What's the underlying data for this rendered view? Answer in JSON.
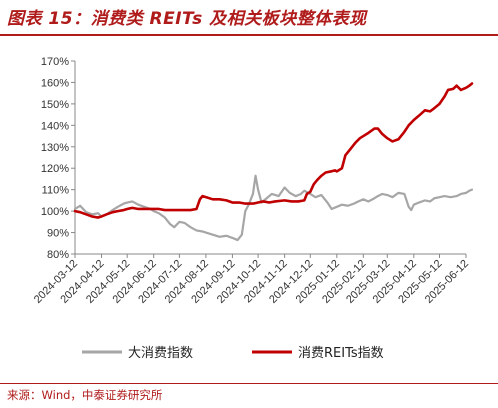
{
  "figure": {
    "title": "图表 15：消费类 REITs 及相关板块整体表现",
    "source": "来源：Wind，中泰证券研究所"
  },
  "colors": {
    "accent": "#b01b1b",
    "series_gray": "#a6a6a6",
    "series_red": "#c00000"
  },
  "chart_data": {
    "type": "line",
    "title": "",
    "xlabel": "",
    "ylabel": "",
    "ylim": [
      80,
      170
    ],
    "ytick_values": [
      80,
      90,
      100,
      110,
      120,
      130,
      140,
      150,
      160,
      170
    ],
    "ytick_labels": [
      "80%",
      "90%",
      "100%",
      "110%",
      "120%",
      "130%",
      "140%",
      "150%",
      "160%",
      "170%"
    ],
    "x_range": [
      "2024-03-12",
      "2025-06-12"
    ],
    "xtick_labels": [
      "2024-03-12",
      "2024-04-12",
      "2024-05-12",
      "2024-06-12",
      "2024-07-12",
      "2024-08-12",
      "2024-09-12",
      "2024-10-12",
      "2024-11-12",
      "2024-12-12",
      "2025-01-12",
      "2025-02-12",
      "2025-03-12",
      "2025-04-12",
      "2025-05-12",
      "2025-06-12"
    ],
    "grid": false,
    "legend_position": "bottom",
    "series": [
      {
        "name": "大消费指数",
        "color": "#a6a6a6",
        "points": [
          [
            "2024-03-12",
            101.0
          ],
          [
            "2024-03-18",
            102.5
          ],
          [
            "2024-03-25",
            99.5
          ],
          [
            "2024-04-01",
            98.5
          ],
          [
            "2024-04-08",
            99.0
          ],
          [
            "2024-04-12",
            97.5
          ],
          [
            "2024-04-18",
            98.5
          ],
          [
            "2024-04-25",
            100.5
          ],
          [
            "2024-05-01",
            102.0
          ],
          [
            "2024-05-08",
            103.5
          ],
          [
            "2024-05-12",
            104.0
          ],
          [
            "2024-05-18",
            104.5
          ],
          [
            "2024-05-25",
            103.0
          ],
          [
            "2024-06-01",
            102.0
          ],
          [
            "2024-06-08",
            101.0
          ],
          [
            "2024-06-12",
            100.0
          ],
          [
            "2024-06-18",
            99.0
          ],
          [
            "2024-06-25",
            97.0
          ],
          [
            "2024-07-01",
            94.0
          ],
          [
            "2024-07-06",
            92.5
          ],
          [
            "2024-07-12",
            95.0
          ],
          [
            "2024-07-18",
            94.5
          ],
          [
            "2024-07-25",
            92.5
          ],
          [
            "2024-08-01",
            91.0
          ],
          [
            "2024-08-08",
            90.5
          ],
          [
            "2024-08-12",
            90.0
          ],
          [
            "2024-08-20",
            89.0
          ],
          [
            "2024-08-28",
            88.0
          ],
          [
            "2024-09-05",
            88.5
          ],
          [
            "2024-09-12",
            87.5
          ],
          [
            "2024-09-18",
            86.5
          ],
          [
            "2024-09-23",
            89.0
          ],
          [
            "2024-09-27",
            100.0
          ],
          [
            "2024-10-01",
            103.0
          ],
          [
            "2024-10-06",
            108.0
          ],
          [
            "2024-10-09",
            116.5
          ],
          [
            "2024-10-12",
            110.0
          ],
          [
            "2024-10-16",
            104.0
          ],
          [
            "2024-10-22",
            106.0
          ],
          [
            "2024-10-28",
            108.0
          ],
          [
            "2024-11-05",
            107.0
          ],
          [
            "2024-11-12",
            111.0
          ],
          [
            "2024-11-18",
            108.5
          ],
          [
            "2024-11-25",
            107.0
          ],
          [
            "2024-12-01",
            108.0
          ],
          [
            "2024-12-05",
            109.5
          ],
          [
            "2024-12-12",
            108.0
          ],
          [
            "2024-12-18",
            106.5
          ],
          [
            "2024-12-25",
            107.5
          ],
          [
            "2025-01-01",
            104.0
          ],
          [
            "2025-01-06",
            101.0
          ],
          [
            "2025-01-12",
            102.0
          ],
          [
            "2025-01-18",
            103.0
          ],
          [
            "2025-01-25",
            102.5
          ],
          [
            "2025-02-01",
            103.5
          ],
          [
            "2025-02-06",
            104.5
          ],
          [
            "2025-02-12",
            105.5
          ],
          [
            "2025-02-18",
            104.5
          ],
          [
            "2025-02-25",
            106.0
          ],
          [
            "2025-03-01",
            107.0
          ],
          [
            "2025-03-06",
            108.0
          ],
          [
            "2025-03-12",
            107.5
          ],
          [
            "2025-03-18",
            106.5
          ],
          [
            "2025-03-25",
            108.5
          ],
          [
            "2025-04-01",
            108.0
          ],
          [
            "2025-04-06",
            102.0
          ],
          [
            "2025-04-09",
            100.5
          ],
          [
            "2025-04-12",
            103.0
          ],
          [
            "2025-04-18",
            104.0
          ],
          [
            "2025-04-25",
            105.0
          ],
          [
            "2025-05-01",
            104.5
          ],
          [
            "2025-05-06",
            106.0
          ],
          [
            "2025-05-12",
            106.5
          ],
          [
            "2025-05-18",
            107.0
          ],
          [
            "2025-05-25",
            106.5
          ],
          [
            "2025-06-01",
            107.0
          ],
          [
            "2025-06-06",
            108.0
          ],
          [
            "2025-06-12",
            108.5
          ],
          [
            "2025-06-16",
            109.5
          ],
          [
            "2025-06-19",
            110.0
          ]
        ]
      },
      {
        "name": "消费REITs指数",
        "color": "#c00000",
        "points": [
          [
            "2024-03-12",
            100.0
          ],
          [
            "2024-03-18",
            99.5
          ],
          [
            "2024-03-25",
            98.5
          ],
          [
            "2024-04-01",
            97.5
          ],
          [
            "2024-04-08",
            97.0
          ],
          [
            "2024-04-12",
            97.5
          ],
          [
            "2024-04-18",
            98.5
          ],
          [
            "2024-04-25",
            99.5
          ],
          [
            "2024-05-01",
            100.0
          ],
          [
            "2024-05-08",
            100.5
          ],
          [
            "2024-05-12",
            101.0
          ],
          [
            "2024-05-18",
            101.5
          ],
          [
            "2024-05-25",
            101.0
          ],
          [
            "2024-06-01",
            101.0
          ],
          [
            "2024-06-08",
            101.0
          ],
          [
            "2024-06-12",
            101.0
          ],
          [
            "2024-06-18",
            101.0
          ],
          [
            "2024-06-25",
            100.5
          ],
          [
            "2024-07-01",
            100.5
          ],
          [
            "2024-07-12",
            100.5
          ],
          [
            "2024-07-25",
            100.5
          ],
          [
            "2024-08-01",
            101.0
          ],
          [
            "2024-08-05",
            105.5
          ],
          [
            "2024-08-08",
            107.0
          ],
          [
            "2024-08-12",
            106.5
          ],
          [
            "2024-08-20",
            105.5
          ],
          [
            "2024-08-28",
            105.5
          ],
          [
            "2024-09-05",
            105.0
          ],
          [
            "2024-09-12",
            104.0
          ],
          [
            "2024-09-20",
            104.0
          ],
          [
            "2024-09-27",
            103.5
          ],
          [
            "2024-10-06",
            103.5
          ],
          [
            "2024-10-12",
            104.0
          ],
          [
            "2024-10-18",
            104.5
          ],
          [
            "2024-10-25",
            104.0
          ],
          [
            "2024-11-01",
            104.5
          ],
          [
            "2024-11-12",
            105.0
          ],
          [
            "2024-11-20",
            104.5
          ],
          [
            "2024-11-28",
            104.5
          ],
          [
            "2024-12-05",
            105.0
          ],
          [
            "2024-12-08",
            108.0
          ],
          [
            "2024-12-12",
            109.0
          ],
          [
            "2024-12-16",
            112.5
          ],
          [
            "2024-12-20",
            114.5
          ],
          [
            "2024-12-25",
            116.5
          ],
          [
            "2024-12-30",
            118.0
          ],
          [
            "2025-01-05",
            118.5
          ],
          [
            "2025-01-10",
            119.0
          ],
          [
            "2025-01-12",
            118.5
          ],
          [
            "2025-01-18",
            120.0
          ],
          [
            "2025-01-22",
            126.0
          ],
          [
            "2025-01-28",
            129.0
          ],
          [
            "2025-02-03",
            132.0
          ],
          [
            "2025-02-08",
            134.0
          ],
          [
            "2025-02-12",
            135.0
          ],
          [
            "2025-02-18",
            136.5
          ],
          [
            "2025-02-25",
            138.5
          ],
          [
            "2025-03-01",
            138.5
          ],
          [
            "2025-03-06",
            136.0
          ],
          [
            "2025-03-12",
            134.0
          ],
          [
            "2025-03-18",
            132.5
          ],
          [
            "2025-03-25",
            133.5
          ],
          [
            "2025-04-01",
            137.0
          ],
          [
            "2025-04-06",
            140.0
          ],
          [
            "2025-04-12",
            142.5
          ],
          [
            "2025-04-18",
            144.5
          ],
          [
            "2025-04-25",
            147.0
          ],
          [
            "2025-05-01",
            146.5
          ],
          [
            "2025-05-06",
            148.0
          ],
          [
            "2025-05-12",
            150.0
          ],
          [
            "2025-05-18",
            153.5
          ],
          [
            "2025-05-22",
            156.5
          ],
          [
            "2025-05-28",
            157.0
          ],
          [
            "2025-06-01",
            158.5
          ],
          [
            "2025-06-06",
            156.5
          ],
          [
            "2025-06-12",
            157.5
          ],
          [
            "2025-06-16",
            158.5
          ],
          [
            "2025-06-19",
            159.5
          ]
        ]
      }
    ]
  }
}
